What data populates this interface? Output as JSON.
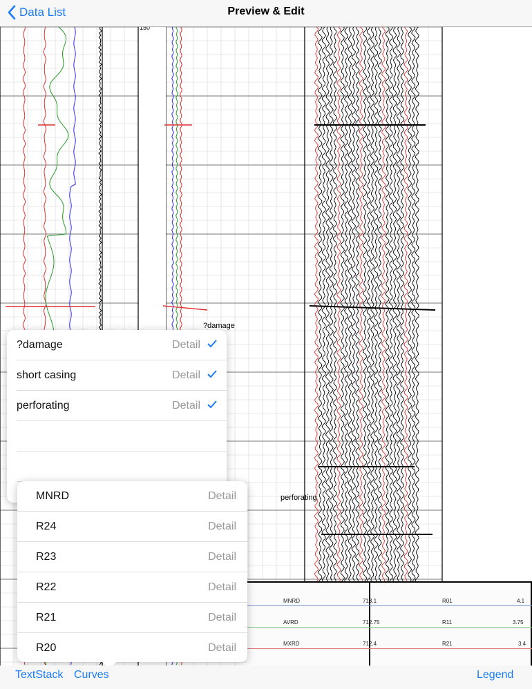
{
  "nav": {
    "back_label": "Data List",
    "title": "Preview & Edit"
  },
  "log": {
    "depth_label": "150",
    "annotations": [
      "?damage",
      "perforating"
    ],
    "curve_colors": {
      "red": "#e03030",
      "green": "#239a23",
      "blue": "#2a2ae0",
      "black": "#000000"
    }
  },
  "textstack": {
    "items": [
      {
        "label": "?damage",
        "detail": "Detail",
        "checked": true
      },
      {
        "label": "short casing",
        "detail": "Detail",
        "checked": true
      },
      {
        "label": "perforating",
        "detail": "Detail",
        "checked": true
      }
    ]
  },
  "curves": {
    "items": [
      {
        "label": "MNRD",
        "detail": "Detail"
      },
      {
        "label": "R24",
        "detail": "Detail"
      },
      {
        "label": "R23",
        "detail": "Detail"
      },
      {
        "label": "R22",
        "detail": "Detail"
      },
      {
        "label": "R21",
        "detail": "Detail"
      },
      {
        "label": "R20",
        "detail": "Detail"
      }
    ]
  },
  "legend": {
    "rows": [
      {
        "name": "MNRD",
        "value": "713.1",
        "name2": "R01",
        "value2": "4.1",
        "color": "#5577dd"
      },
      {
        "name": "AVRD",
        "value": "712.75",
        "name2": "R11",
        "value2": "3.75",
        "color": "#33aa33"
      },
      {
        "name": "MXRD",
        "value": "712.4",
        "name2": "R21",
        "value2": "3.4",
        "color": "#dd4444"
      }
    ]
  },
  "bottom": {
    "textstack_label": "TextStack",
    "curves_label": "Curves",
    "legend_label": "Legend"
  },
  "colors": {
    "accent": "#1a7cf6",
    "check": "#1a7cf6"
  }
}
